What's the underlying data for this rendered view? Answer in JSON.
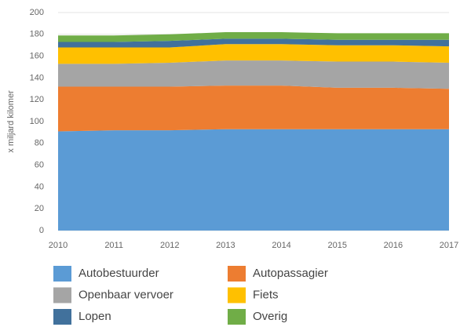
{
  "chart_data": {
    "type": "stacked_area",
    "y_label": "x miljard kilomer",
    "x": [
      2010,
      2011,
      2012,
      2013,
      2014,
      2015,
      2016,
      2017
    ],
    "xlim": [
      2010,
      2017
    ],
    "xticks": [
      2010,
      2011,
      2012,
      2013,
      2014,
      2015,
      2016,
      2017
    ],
    "ylim": [
      0,
      200
    ],
    "yticks": [
      0,
      20,
      40,
      60,
      80,
      100,
      120,
      140,
      160,
      180,
      200
    ],
    "grid": true,
    "series": [
      {
        "name": "Autobestuurder",
        "color": "#5b9bd5",
        "values": [
          91,
          92,
          92,
          93,
          93,
          93,
          93,
          93
        ]
      },
      {
        "name": "Autopassagier",
        "color": "#ed7d31",
        "values": [
          41,
          40,
          40,
          40,
          40,
          38,
          38,
          37
        ]
      },
      {
        "name": "Openbaar vervoer",
        "color": "#a5a5a5",
        "values": [
          21,
          21,
          22,
          23,
          23,
          24,
          24,
          24
        ]
      },
      {
        "name": "Fiets",
        "color": "#ffc000",
        "values": [
          15,
          15,
          14,
          15,
          15,
          15,
          15,
          15
        ]
      },
      {
        "name": "Lopen",
        "color": "#41719c",
        "values": [
          5,
          5,
          6,
          5,
          5,
          5,
          5,
          6
        ]
      },
      {
        "name": "Overig",
        "color": "#70ad47",
        "values": [
          6,
          6,
          6,
          6,
          6,
          6,
          6,
          6
        ]
      }
    ]
  }
}
